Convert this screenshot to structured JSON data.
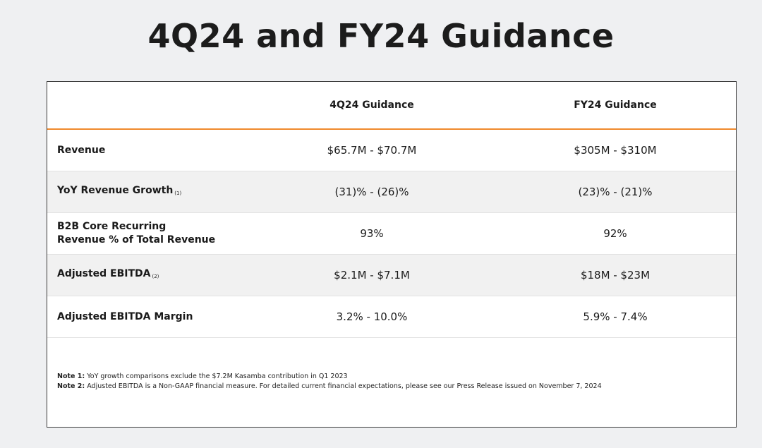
{
  "title": "4Q24 and FY24 Guidance",
  "table": {
    "headers": [
      "4Q24 Guidance",
      "FY24 Guidance"
    ],
    "rows": [
      {
        "label": [
          "Revenue"
        ],
        "footnote": null,
        "values": [
          "$65.7M - $70.7M",
          "$305M - $310M"
        ]
      },
      {
        "label": [
          "YoY Revenue Growth"
        ],
        "footnote": "(1)",
        "values": [
          "(31)% - (26)%",
          "(23)% - (21)%"
        ]
      },
      {
        "label": [
          "B2B Core Recurring",
          "Revenue % of Total Revenue"
        ],
        "footnote": null,
        "values": [
          "93%",
          "92%"
        ]
      },
      {
        "label": [
          "Adjusted EBITDA"
        ],
        "footnote": "(2)",
        "values": [
          "$2.1M - $7.1M",
          "$18M - $23M"
        ]
      },
      {
        "label": [
          "Adjusted EBITDA Margin"
        ],
        "footnote": null,
        "values": [
          "3.2% - 10.0%",
          "5.9% - 7.4%"
        ]
      }
    ]
  },
  "notes": [
    {
      "label": "Note 1:",
      "text": "YoY growth comparisons exclude the $7.2M Kasamba contribution in Q1 2023"
    },
    {
      "label": "Note 2:",
      "text": "Adjusted EBITDA is a Non-GAAP financial measure. For detailed current financial expectations, please see our Press Release issued on November 7, 2024"
    }
  ]
}
